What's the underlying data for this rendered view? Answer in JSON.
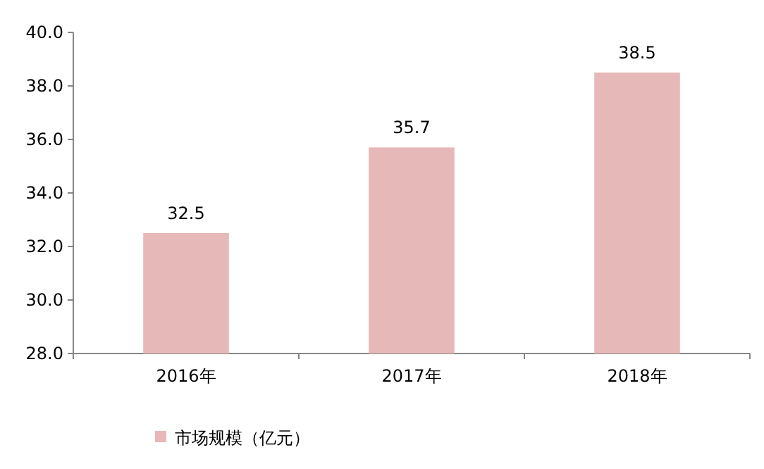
{
  "chart_data": {
    "type": "bar",
    "categories": [
      "2016年",
      "2017年",
      "2018年"
    ],
    "series": [
      {
        "name": "市场规模（亿元）",
        "color": "#e6b8b7",
        "values": [
          32.5,
          35.7,
          38.5
        ]
      }
    ],
    "ylim": [
      28,
      40
    ],
    "yticks": [
      {
        "value": 28,
        "label": "28.0"
      },
      {
        "value": 30,
        "label": "30.0"
      },
      {
        "value": 32,
        "label": "32.0"
      },
      {
        "value": 34,
        "label": "34.0"
      },
      {
        "value": 36,
        "label": "36.0"
      },
      {
        "value": 38,
        "label": "38.0"
      },
      {
        "value": 40,
        "label": "40.0"
      }
    ],
    "data_labels": true,
    "legend": "bottom left",
    "grid": false
  }
}
